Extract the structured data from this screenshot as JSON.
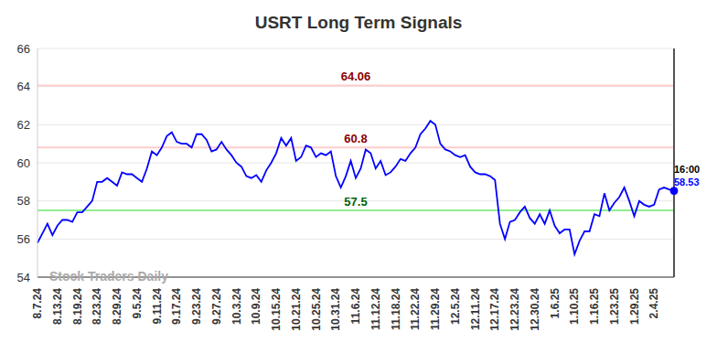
{
  "chart_data": {
    "type": "line",
    "title": "USRT Long Term Signals",
    "watermark": "Stock Traders Daily",
    "categories": [
      "8.7.24",
      null,
      null,
      null,
      "8.13.24",
      null,
      null,
      null,
      "8.19.24",
      null,
      null,
      null,
      "8.23.24",
      null,
      null,
      null,
      "8.29.24",
      null,
      null,
      null,
      "9.5.24",
      null,
      null,
      null,
      "9.11.24",
      null,
      null,
      null,
      "9.17.24",
      null,
      null,
      null,
      "9.23.24",
      null,
      null,
      null,
      "9.27.24",
      null,
      null,
      null,
      "10.3.24",
      null,
      null,
      null,
      "10.9.24",
      null,
      null,
      null,
      "10.15.24",
      null,
      null,
      null,
      "10.21.24",
      null,
      null,
      null,
      "10.25.24",
      null,
      null,
      null,
      "10.31.24",
      null,
      null,
      null,
      "11.6.24",
      null,
      null,
      null,
      "11.12.24",
      null,
      null,
      null,
      "11.18.24",
      null,
      null,
      null,
      "11.22.24",
      null,
      null,
      null,
      "11.29.24",
      null,
      null,
      null,
      "12.5.24",
      null,
      null,
      null,
      "12.11.24",
      null,
      null,
      null,
      "12.17.24",
      null,
      null,
      null,
      "12.23.24",
      null,
      null,
      null,
      "12.30.24",
      null,
      null,
      null,
      "1.6.25",
      null,
      null,
      null,
      "1.10.25",
      null,
      null,
      null,
      "1.16.25",
      null,
      null,
      null,
      "1.23.25",
      null,
      null,
      null,
      "1.29.25",
      null,
      null,
      null,
      "2.4.25",
      null,
      null,
      null,
      null
    ],
    "values": [
      55.8,
      56.3,
      56.8,
      56.2,
      56.7,
      57.0,
      57.0,
      56.9,
      57.4,
      57.4,
      57.7,
      58.0,
      59.0,
      59.0,
      59.2,
      59.0,
      58.8,
      59.5,
      59.4,
      59.4,
      59.2,
      59.0,
      59.7,
      60.6,
      60.4,
      60.8,
      61.4,
      61.6,
      61.1,
      61.0,
      61.0,
      60.8,
      61.5,
      61.5,
      61.2,
      60.6,
      60.7,
      61.1,
      60.7,
      60.4,
      60.0,
      59.8,
      59.3,
      59.2,
      59.35,
      59.0,
      59.6,
      60.0,
      60.5,
      61.3,
      60.9,
      61.3,
      60.1,
      60.3,
      60.9,
      60.8,
      60.3,
      60.5,
      60.4,
      60.6,
      59.3,
      58.7,
      59.3,
      60.1,
      59.2,
      59.7,
      60.7,
      60.5,
      59.7,
      60.1,
      59.35,
      59.5,
      59.8,
      60.2,
      60.1,
      60.5,
      60.8,
      61.5,
      61.8,
      62.2,
      62.0,
      61.0,
      60.7,
      60.6,
      60.4,
      60.3,
      60.4,
      59.8,
      59.5,
      59.4,
      59.4,
      59.3,
      59.1,
      56.8,
      56.0,
      56.9,
      57.0,
      57.4,
      57.7,
      57.1,
      56.8,
      57.3,
      56.8,
      57.5,
      56.7,
      56.3,
      56.5,
      56.5,
      55.2,
      55.9,
      56.4,
      56.4,
      57.3,
      57.2,
      58.4,
      57.5,
      57.9,
      58.2,
      58.7,
      58.0,
      57.2,
      58.0,
      57.8,
      57.7,
      57.8,
      58.6,
      58.7,
      58.6,
      58.53
    ],
    "color": "#0000ff",
    "ylim": [
      54,
      66
    ],
    "yticks": [
      54,
      56,
      58,
      60,
      62,
      64,
      66
    ],
    "grid": true,
    "hlines": [
      {
        "value": 64.06,
        "label": "64.06",
        "color": "#ffcccc",
        "label_color": "#8b0000"
      },
      {
        "value": 60.8,
        "label": "60.8",
        "color": "#ffcccc",
        "label_color": "#8b0000"
      },
      {
        "value": 57.5,
        "label": "57.5",
        "color": "#90ee90",
        "label_color": "#006400"
      }
    ],
    "last_label": {
      "time": "16:00",
      "value": 58.53
    }
  }
}
